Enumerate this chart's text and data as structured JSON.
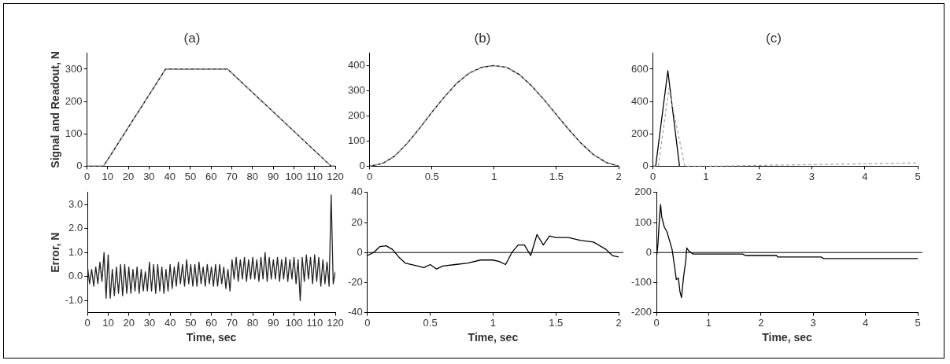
{
  "chart_data": [
    {
      "type": "line",
      "title": "(a)",
      "ylabel": "Signal and Readout, N",
      "xlim": [
        0,
        120
      ],
      "xticks": [
        0,
        10,
        20,
        30,
        40,
        50,
        60,
        70,
        80,
        90,
        100,
        110,
        120
      ],
      "ylim": [
        0,
        350
      ],
      "yticks": [
        0,
        100,
        200,
        300
      ],
      "x": [
        0,
        8,
        38,
        68,
        118,
        120
      ],
      "series": [
        {
          "color": "#aaaaaa",
          "line_style": "dashed",
          "values": [
            0,
            0,
            300,
            300,
            0,
            0
          ]
        },
        {
          "color": "#000000",
          "values": [
            0,
            0,
            300,
            300,
            0,
            0
          ]
        }
      ]
    },
    {
      "type": "line",
      "title": "(b)",
      "xlim": [
        0,
        2
      ],
      "xticks": [
        0,
        0.5,
        1,
        1.5,
        2
      ],
      "ylim": [
        0,
        450
      ],
      "yticks": [
        0,
        100,
        200,
        300,
        400
      ],
      "x": [
        0,
        0.1,
        0.2,
        0.3,
        0.4,
        0.5,
        0.6,
        0.7,
        0.8,
        0.9,
        1.0,
        1.1,
        1.2,
        1.3,
        1.4,
        1.5,
        1.6,
        1.7,
        1.8,
        1.9,
        2.0
      ],
      "series": [
        {
          "color": "#aaaaaa",
          "line_style": "dashed",
          "values": [
            0,
            10,
            40,
            90,
            150,
            215,
            275,
            330,
            370,
            393,
            400,
            393,
            365,
            320,
            265,
            205,
            145,
            90,
            45,
            15,
            0
          ]
        },
        {
          "color": "#000000",
          "values": [
            0,
            10,
            40,
            90,
            150,
            215,
            275,
            330,
            370,
            393,
            400,
            393,
            365,
            320,
            265,
            205,
            145,
            90,
            45,
            15,
            0
          ]
        }
      ]
    },
    {
      "type": "line",
      "title": "(c)",
      "xlim": [
        0,
        5
      ],
      "xticks": [
        0,
        1,
        2,
        3,
        4,
        5
      ],
      "ylim": [
        0,
        700
      ],
      "yticks": [
        0,
        200,
        400,
        600
      ],
      "series": [
        {
          "color": "#aaaaaa",
          "line_style": "dashed",
          "x": [
            0,
            0.1,
            0.3,
            0.6,
            1.2,
            2,
            3,
            4,
            5
          ],
          "values": [
            0,
            0,
            480,
            0,
            0,
            5,
            10,
            15,
            20
          ]
        },
        {
          "color": "#000000",
          "x": [
            0,
            0.05,
            0.28,
            0.5
          ],
          "values": [
            0,
            0,
            590,
            0
          ]
        }
      ]
    },
    {
      "type": "line",
      "xlabel": "Time, sec",
      "ylabel": "Error, N",
      "xlim": [
        0,
        120
      ],
      "xticks": [
        0,
        10,
        20,
        30,
        40,
        50,
        60,
        70,
        80,
        90,
        100,
        110,
        120
      ],
      "ylim": [
        -1.5,
        3.5
      ],
      "yticks": [
        {
          "value": -1,
          "label": "-1.0"
        },
        {
          "value": 0,
          "label": "0.0"
        },
        {
          "value": 1,
          "label": "1.0"
        },
        {
          "value": 2,
          "label": "2.0"
        },
        {
          "value": 3,
          "label": "3.0"
        }
      ],
      "x": [
        0,
        1,
        2,
        3,
        4,
        5,
        6,
        7,
        8,
        9,
        10,
        11,
        12,
        13,
        14,
        15,
        16,
        17,
        18,
        19,
        20,
        21,
        22,
        23,
        24,
        25,
        26,
        27,
        28,
        29,
        30,
        31,
        32,
        33,
        34,
        35,
        36,
        37,
        38,
        39,
        40,
        41,
        42,
        43,
        44,
        45,
        46,
        47,
        48,
        49,
        50,
        51,
        52,
        53,
        54,
        55,
        56,
        57,
        58,
        59,
        60,
        61,
        62,
        63,
        64,
        65,
        66,
        67,
        68,
        69,
        70,
        71,
        72,
        73,
        74,
        75,
        76,
        77,
        78,
        79,
        80,
        81,
        82,
        83,
        84,
        85,
        86,
        87,
        88,
        89,
        90,
        91,
        92,
        93,
        94,
        95,
        96,
        97,
        98,
        99,
        100,
        101,
        102,
        103,
        104,
        105,
        106,
        107,
        108,
        109,
        110,
        111,
        112,
        113,
        114,
        115,
        116,
        117,
        118,
        119,
        120
      ],
      "series": [
        {
          "color": "#222222",
          "values": [
            0.4,
            -0.3,
            0.3,
            -0.4,
            0.4,
            -0.3,
            0.6,
            -0.2,
            1.0,
            -0.9,
            0.9,
            -0.9,
            0.3,
            -0.8,
            0.4,
            -0.7,
            0.5,
            -0.8,
            0.5,
            -0.7,
            0.4,
            -0.7,
            0.3,
            -0.6,
            0.4,
            -0.7,
            0.3,
            -0.6,
            0.2,
            -0.6,
            0.6,
            -0.6,
            0.5,
            -0.7,
            0.5,
            -0.6,
            0.4,
            -0.7,
            0.3,
            -0.6,
            0.5,
            -0.5,
            0.4,
            -0.4,
            0.6,
            -0.3,
            0.5,
            -0.4,
            0.7,
            -0.3,
            0.5,
            -0.4,
            0.5,
            -0.4,
            0.6,
            -0.3,
            0.4,
            -0.4,
            0.5,
            -0.3,
            0.4,
            -0.4,
            0.5,
            -0.4,
            0.5,
            -0.3,
            0.4,
            -0.5,
            0.3,
            -0.6,
            0.7,
            -0.1,
            0.8,
            -0.2,
            0.7,
            -0.1,
            0.8,
            -0.2,
            0.7,
            -0.1,
            0.8,
            -0.1,
            0.7,
            -0.2,
            0.8,
            -0.1,
            1.0,
            -0.2,
            0.8,
            -0.1,
            0.7,
            -0.1,
            0.8,
            -0.2,
            0.7,
            -0.1,
            0.8,
            -0.2,
            0.7,
            -0.1,
            0.8,
            -0.3,
            0.7,
            -1.0,
            0.8,
            -0.2,
            0.9,
            -0.1,
            0.8,
            -0.3,
            0.9,
            -0.2,
            0.8,
            -0.4,
            0.7,
            -0.3,
            0.6,
            -0.4,
            3.4,
            -0.3,
            0.2
          ]
        }
      ]
    },
    {
      "type": "line",
      "xlabel": "Time, sec",
      "xlim": [
        0,
        2
      ],
      "xticks": [
        0,
        0.5,
        1,
        1.5,
        2
      ],
      "ylim": [
        -40,
        40
      ],
      "yticks": [
        -40,
        -20,
        0,
        20,
        40
      ],
      "ref_lines": [
        {
          "axis": "y",
          "value": 0,
          "color": "#000000"
        }
      ],
      "x": [
        0,
        0.05,
        0.1,
        0.15,
        0.2,
        0.25,
        0.3,
        0.4,
        0.45,
        0.5,
        0.55,
        0.6,
        0.7,
        0.8,
        0.9,
        1.0,
        1.05,
        1.1,
        1.15,
        1.2,
        1.25,
        1.3,
        1.35,
        1.4,
        1.45,
        1.5,
        1.6,
        1.7,
        1.8,
        1.9,
        1.95,
        2.0
      ],
      "series": [
        {
          "color": "#000000",
          "values": [
            -2,
            0,
            4,
            4.5,
            2,
            -3,
            -7,
            -9,
            -10,
            -8,
            -11,
            -9,
            -8,
            -7,
            -5,
            -5,
            -6,
            -8,
            0,
            5,
            5,
            -2,
            12,
            5,
            11,
            10,
            10,
            8,
            7,
            2,
            -2,
            -3
          ]
        }
      ]
    },
    {
      "type": "line",
      "xlabel": "Time, sec",
      "xlim": [
        0,
        5
      ],
      "xticks": [
        0,
        1,
        2,
        3,
        4,
        5
      ],
      "ylim": [
        -200,
        200
      ],
      "yticks": [
        -200,
        -100,
        0,
        100,
        200
      ],
      "ref_lines": [
        {
          "axis": "y",
          "value": 0,
          "color": "#000000"
        }
      ],
      "x": [
        0,
        0.03,
        0.06,
        0.08,
        0.1,
        0.15,
        0.2,
        0.25,
        0.3,
        0.35,
        0.38,
        0.42,
        0.45,
        0.48,
        0.52,
        0.56,
        0.58,
        0.62,
        0.7,
        1,
        1.65,
        1.7,
        2.3,
        2.32,
        3.15,
        3.2,
        5
      ],
      "series": [
        {
          "color": "#000000",
          "values": [
            -20,
            30,
            120,
            160,
            120,
            85,
            70,
            40,
            10,
            -50,
            -90,
            -85,
            -130,
            -150,
            -80,
            -30,
            15,
            5,
            -5,
            -5,
            -5,
            -10,
            -10,
            -15,
            -15,
            -20,
            -20
          ]
        }
      ]
    }
  ]
}
